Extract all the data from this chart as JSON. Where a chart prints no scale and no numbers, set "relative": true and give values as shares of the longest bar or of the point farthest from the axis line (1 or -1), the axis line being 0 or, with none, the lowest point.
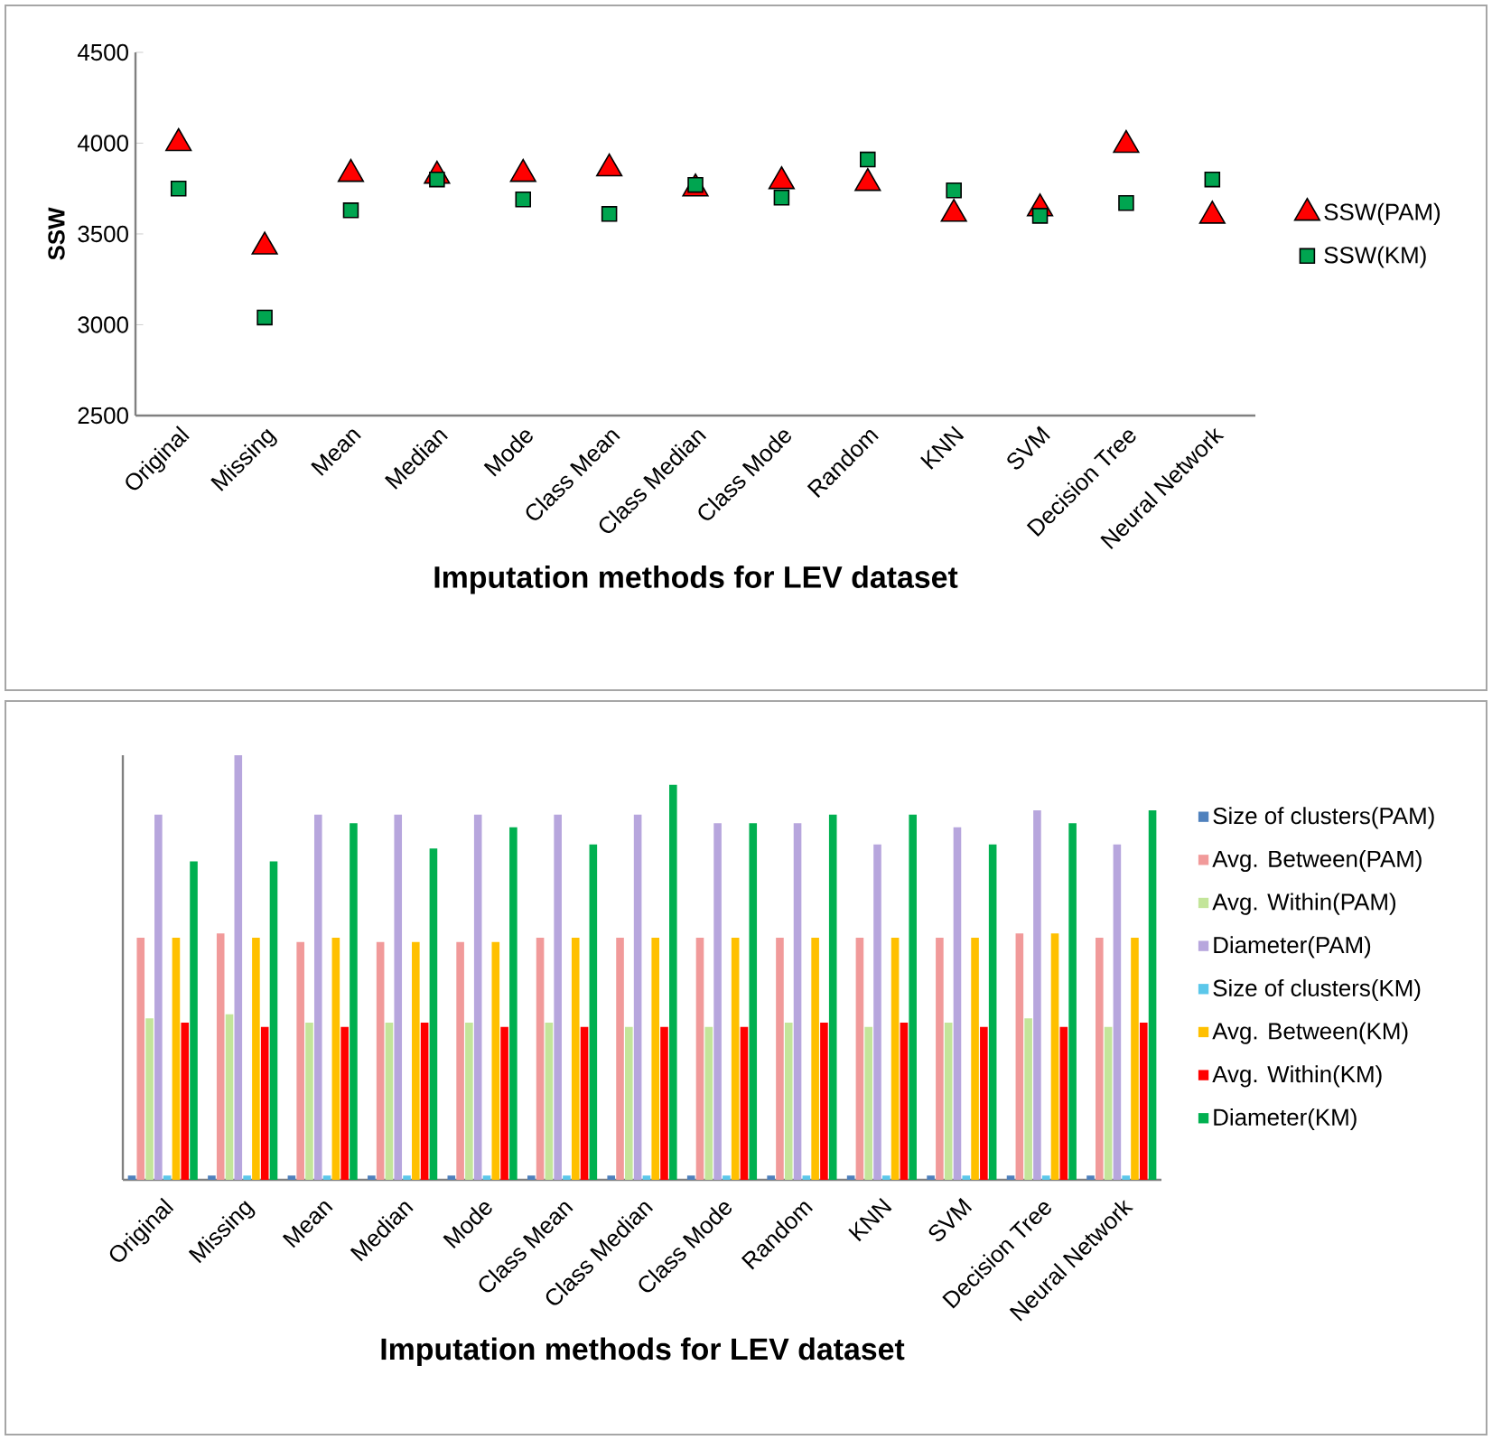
{
  "chart_data": [
    {
      "type": "scatter",
      "xlabel": "Imputation methods for LEV dataset",
      "ylabel": "SSW",
      "categories": [
        "Original",
        "Missing",
        "Mean",
        "Median",
        "Mode",
        "Class Mean",
        "Class Median",
        "Class Mode",
        "Random",
        "KNN",
        "SVM",
        "Decision Tree",
        "Neural Network"
      ],
      "ylim": [
        2500,
        4500
      ],
      "yticks": [
        2500,
        3000,
        3500,
        4000,
        4500
      ],
      "legend": "right",
      "grid": false,
      "series": [
        {
          "name": "SSW(PAM)",
          "color": "#ff0000",
          "marker": "triangle",
          "values": [
            4000,
            3430,
            3830,
            3820,
            3830,
            3860,
            3750,
            3790,
            3780,
            3610,
            3640,
            3990,
            3600
          ]
        },
        {
          "name": "SSW(KM)",
          "color": "#00a550",
          "marker": "square",
          "values": [
            3750,
            3040,
            3630,
            3800,
            3690,
            3610,
            3770,
            3700,
            3910,
            3740,
            3600,
            3670,
            3800
          ]
        }
      ]
    },
    {
      "type": "bar",
      "relative": true,
      "xlabel": "Imputation methods for LEV dataset",
      "legend": "right",
      "grid": false,
      "categories": [
        "Original",
        "Missing",
        "Mean",
        "Median",
        "Mode",
        "Class Mean",
        "Class Median",
        "Class Mode",
        "Random",
        "KNN",
        "SVM",
        "Decision Tree",
        "Neural Network"
      ],
      "series": [
        {
          "name": "Size of clusters(PAM)",
          "color": "#4f81bd",
          "values": [
            0.01,
            0.01,
            0.01,
            0.01,
            0.01,
            0.01,
            0.01,
            0.01,
            0.01,
            0.01,
            0.01,
            0.01,
            0.01
          ]
        },
        {
          "name": "Avg. Between(PAM)",
          "color": "#f19a9a",
          "values": [
            0.57,
            0.58,
            0.56,
            0.56,
            0.56,
            0.57,
            0.57,
            0.57,
            0.57,
            0.57,
            0.57,
            0.58,
            0.57
          ]
        },
        {
          "name": "Avg. Within(PAM)",
          "color": "#c3e59a",
          "values": [
            0.38,
            0.39,
            0.37,
            0.37,
            0.37,
            0.37,
            0.36,
            0.36,
            0.37,
            0.36,
            0.37,
            0.38,
            0.36
          ]
        },
        {
          "name": "Diameter(PAM)",
          "color": "#b7a6dd",
          "values": [
            0.86,
            1.0,
            0.86,
            0.86,
            0.86,
            0.86,
            0.86,
            0.84,
            0.84,
            0.79,
            0.83,
            0.87,
            0.79
          ]
        },
        {
          "name": "Size of clusters(KM)",
          "color": "#5bc7ea",
          "values": [
            0.01,
            0.01,
            0.01,
            0.01,
            0.01,
            0.01,
            0.01,
            0.01,
            0.01,
            0.01,
            0.01,
            0.01,
            0.01
          ]
        },
        {
          "name": "Avg. Between(KM)",
          "color": "#ffc000",
          "values": [
            0.57,
            0.57,
            0.57,
            0.56,
            0.56,
            0.57,
            0.57,
            0.57,
            0.57,
            0.57,
            0.57,
            0.58,
            0.57
          ]
        },
        {
          "name": "Avg. Within(KM)",
          "color": "#ff0000",
          "values": [
            0.37,
            0.36,
            0.36,
            0.37,
            0.36,
            0.36,
            0.36,
            0.36,
            0.37,
            0.37,
            0.36,
            0.36,
            0.37
          ]
        },
        {
          "name": "Diameter(KM)",
          "color": "#00b050",
          "values": [
            0.75,
            0.75,
            0.84,
            0.78,
            0.83,
            0.79,
            0.93,
            0.84,
            0.86,
            0.86,
            0.79,
            0.84,
            0.87
          ]
        }
      ]
    }
  ]
}
